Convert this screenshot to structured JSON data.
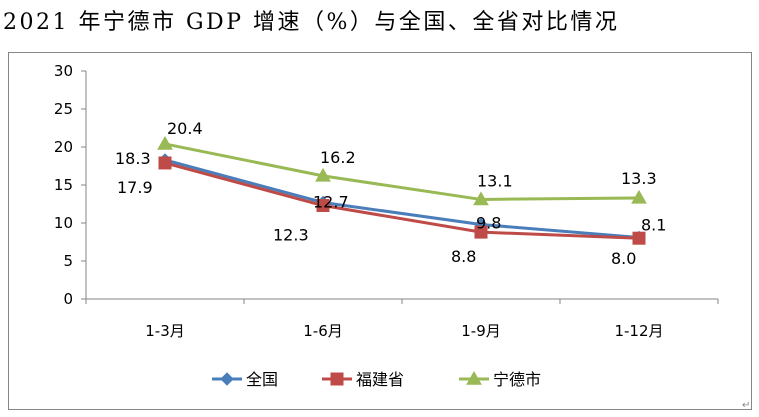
{
  "chart_data": {
    "type": "line",
    "title": "2021 年宁德市 GDP 增速（%）与全国、全省对比情况",
    "categories": [
      "1-3月",
      "1-6月",
      "1-9月",
      "1-12月"
    ],
    "ylim": [
      0,
      30
    ],
    "yticks": [
      0,
      5,
      10,
      15,
      20,
      25,
      30
    ],
    "xlabel": "",
    "ylabel": "",
    "legend_position": "bottom",
    "grid": false,
    "series": [
      {
        "name": "全国",
        "values": [
          18.3,
          12.7,
          9.8,
          8.1
        ],
        "color": "#4a7ebb",
        "marker": "diamond",
        "labels": [
          "18.3",
          "12.7",
          "9.8",
          "8.1"
        ]
      },
      {
        "name": "福建省",
        "values": [
          17.9,
          12.3,
          8.8,
          8.0
        ],
        "color": "#be4b48",
        "marker": "square",
        "labels": [
          "17.9",
          "12.3",
          "8.8",
          "8.0"
        ]
      },
      {
        "name": "宁德市",
        "values": [
          20.4,
          16.2,
          13.1,
          13.3
        ],
        "color": "#98b954",
        "marker": "triangle",
        "labels": [
          "20.4",
          "16.2",
          "13.1",
          "13.3"
        ]
      }
    ]
  },
  "page": {
    "corner_mark": "↵"
  }
}
